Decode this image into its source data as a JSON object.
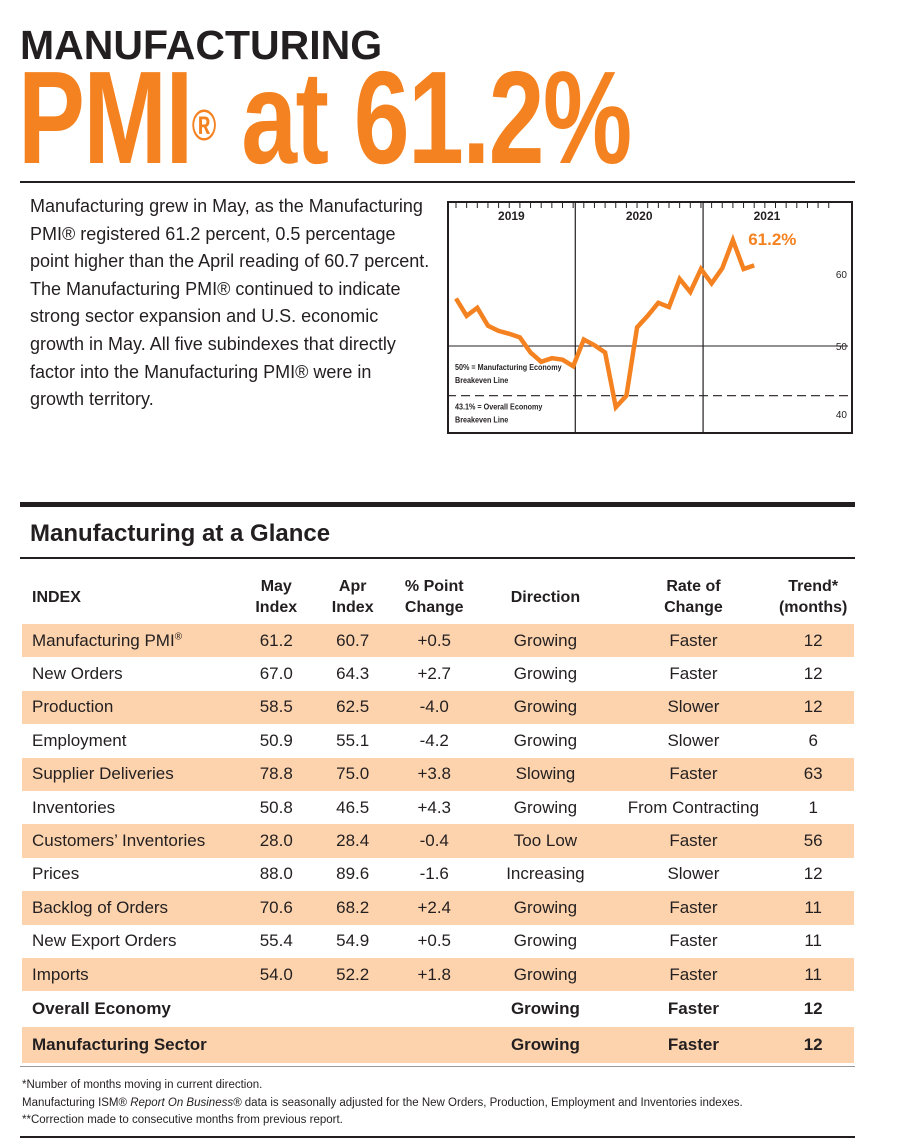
{
  "header": {
    "kicker": "MANUFACTURING",
    "headline_pre": "PMI",
    "headline_reg": "®",
    "headline_post": " at 61.2%"
  },
  "intro": "Manufacturing grew in May, as the Manufacturing PMI® registered 61.2 percent, 0.5 percentage point higher than the April reading of 60.7 percent. The Manufacturing PMI® continued to indicate strong sector expansion and U.S. economic growth in May. All five subindexes that directly factor into the Manufacturing PMI® were in growth territory.",
  "chart_data": {
    "type": "line",
    "title": "",
    "xlabel": "",
    "ylabel": "",
    "x_groups": [
      "2019",
      "2020",
      "2021"
    ],
    "x_start": "2019-01",
    "x": [
      "2019-01",
      "2019-02",
      "2019-03",
      "2019-04",
      "2019-05",
      "2019-06",
      "2019-07",
      "2019-08",
      "2019-09",
      "2019-10",
      "2019-11",
      "2019-12",
      "2020-01",
      "2020-02",
      "2020-03",
      "2020-04",
      "2020-05",
      "2020-06",
      "2020-07",
      "2020-08",
      "2020-09",
      "2020-10",
      "2020-11",
      "2020-12",
      "2021-01",
      "2021-02",
      "2021-03",
      "2021-04",
      "2021-05"
    ],
    "values": [
      56.6,
      54.2,
      55.3,
      52.8,
      52.1,
      51.7,
      51.2,
      49.1,
      47.8,
      48.3,
      48.1,
      47.2,
      50.9,
      50.1,
      49.1,
      41.5,
      43.1,
      52.6,
      54.2,
      56.0,
      55.4,
      59.3,
      57.5,
      60.7,
      58.7,
      60.8,
      64.7,
      60.7,
      61.2
    ],
    "ylim": [
      38,
      70
    ],
    "yticks": [
      40,
      50,
      60
    ],
    "end_label": "61.2%",
    "series_color": "#f58220",
    "reference_lines": [
      {
        "value": 50,
        "style": "solid",
        "label_line1": "50% = Manufacturing Economy",
        "label_line2": "Breakeven Line"
      },
      {
        "value": 43.1,
        "style": "dashed",
        "label_line1": "43.1% = Overall Economy",
        "label_line2": "Breakeven Line"
      }
    ],
    "grid": false
  },
  "glance": {
    "title": "Manufacturing at a Glance",
    "headers": [
      "INDEX",
      "May Index",
      "Apr Index",
      "% Point Change",
      "Direction",
      "Rate of Change",
      "Trend* (months)"
    ],
    "header_lines": [
      [
        "INDEX"
      ],
      [
        "May",
        "Index"
      ],
      [
        "Apr",
        "Index"
      ],
      [
        "% Point",
        "Change"
      ],
      [
        "Direction"
      ],
      [
        "Rate of",
        "Change"
      ],
      [
        "Trend*",
        "(months)"
      ]
    ],
    "rows": [
      [
        "Manufacturing PMI®",
        "61.2",
        "60.7",
        "+0.5",
        "Growing",
        "Faster",
        "12"
      ],
      [
        "New Orders",
        "67.0",
        "64.3",
        "+2.7",
        "Growing",
        "Faster",
        "12"
      ],
      [
        "Production",
        "58.5",
        "62.5",
        "-4.0",
        "Growing",
        "Slower",
        "12"
      ],
      [
        "Employment",
        "50.9",
        "55.1",
        "-4.2",
        "Growing",
        "Slower",
        "6"
      ],
      [
        "Supplier Deliveries",
        "78.8",
        "75.0",
        "+3.8",
        "Slowing",
        "Faster",
        "63"
      ],
      [
        "Inventories",
        "50.8",
        "46.5",
        "+4.3",
        "Growing",
        "From Contracting",
        "1"
      ],
      [
        "Customers’ Inventories",
        "28.0",
        "28.4",
        "-0.4",
        "Too Low",
        "Faster",
        "56"
      ],
      [
        "Prices",
        "88.0",
        "89.6",
        "-1.6",
        "Increasing",
        "Slower",
        "12"
      ],
      [
        "Backlog of Orders",
        "70.6",
        "68.2",
        "+2.4",
        "Growing",
        "Faster",
        "11"
      ],
      [
        "New Export Orders",
        "55.4",
        "54.9",
        "+0.5",
        "Growing",
        "Faster",
        "11"
      ],
      [
        "Imports",
        "54.0",
        "52.2",
        "+1.8",
        "Growing",
        "Faster",
        "11"
      ]
    ],
    "summary_rows": [
      [
        "Overall Economy",
        "",
        "",
        "",
        "Growing",
        "Faster",
        "12"
      ],
      [
        "Manufacturing Sector",
        "",
        "",
        "",
        "Growing",
        "Faster",
        "12"
      ]
    ],
    "shade_color": "#fdd3ad"
  },
  "footnotes": {
    "note1": "*Number of months moving in current direction.",
    "note2_pre": "Manufacturing ISM® ",
    "note2_italic": "Report On Business®",
    "note2_post": " data is seasonally adjusted for the New Orders, Production, Employment and Inventories indexes.",
    "note3": "**Correction made to consecutive months from previous report."
  }
}
